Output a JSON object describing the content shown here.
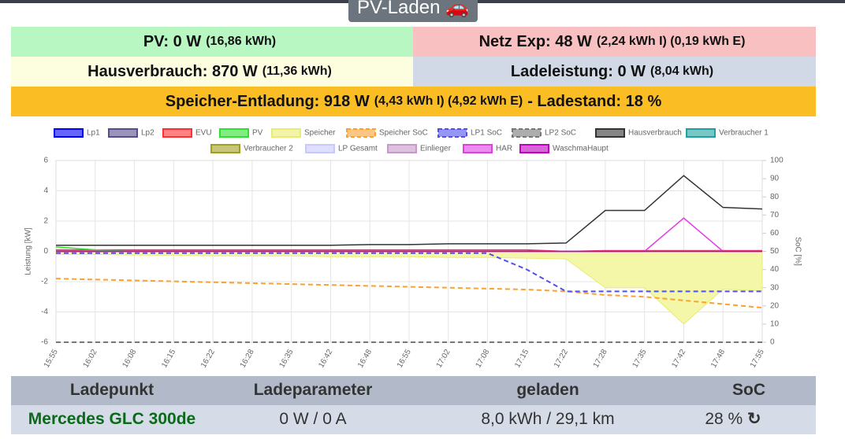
{
  "header": {
    "button": "PV-Laden"
  },
  "status": {
    "pv": {
      "label": "PV: 0 W",
      "detail": "(16,86 kWh)"
    },
    "netz": {
      "label": "Netz Exp: 48 W",
      "detail": "(2,24 kWh I) (0,19 kWh E)"
    },
    "haus": {
      "label": "Hausverbrauch: 870 W",
      "detail": "(11,36 kWh)"
    },
    "lade": {
      "label": "Ladeleistung: 0 W",
      "detail": "(8,04 kWh)"
    },
    "speicher": {
      "label": "Speicher-Entladung: 918 W",
      "detail": "(4,43 kWh I) (4,92 kWh E)",
      "suffix": "- Ladestand: 18 %"
    }
  },
  "chart_data": {
    "type": "line",
    "ylabel": "Leistung [kW]",
    "y2label": "SoC [%]",
    "categories": [
      "15:55",
      "16:02",
      "16:08",
      "16:15",
      "16:22",
      "16:28",
      "16:35",
      "16:42",
      "16:48",
      "16:55",
      "17:02",
      "17:08",
      "17:15",
      "17:22",
      "17:28",
      "17:35",
      "17:42",
      "17:48",
      "17:55"
    ],
    "ylim": [
      -6,
      6
    ],
    "yticks": [
      -6,
      -4,
      -2,
      0,
      2,
      4,
      6
    ],
    "y2lim": [
      0,
      100
    ],
    "y2ticks": [
      0,
      10,
      20,
      30,
      40,
      50,
      60,
      70,
      80,
      90,
      100
    ],
    "grid": true,
    "series": [
      {
        "name": "Lp1",
        "color": "#0000ff",
        "values": [
          0,
          0,
          0,
          0,
          0,
          0,
          0,
          0,
          0,
          0,
          0,
          0,
          0,
          0,
          0,
          0,
          0,
          0,
          0
        ]
      },
      {
        "name": "Lp2",
        "color": "#574d8c",
        "values": [
          0,
          0,
          0,
          0,
          0,
          0,
          0,
          0,
          0,
          0,
          0,
          0,
          0,
          0,
          0,
          0,
          0,
          0,
          0
        ]
      },
      {
        "name": "EVU",
        "color": "#ff3030",
        "values": [
          0.1,
          0.1,
          0.1,
          0.1,
          0.1,
          0.1,
          0.1,
          0.1,
          0.1,
          0.1,
          0.1,
          0.1,
          0.1,
          0,
          0.05,
          0.05,
          0.05,
          0.05,
          0.05
        ]
      },
      {
        "name": "PV",
        "color": "#30e030",
        "values": [
          0.3,
          0.1,
          0,
          0,
          0,
          0,
          0,
          0,
          0,
          0,
          0,
          0,
          0,
          0,
          0,
          0,
          0,
          0,
          0
        ]
      },
      {
        "name": "Speicher",
        "color": "#e8ec70",
        "values": [
          -0.2,
          -0.2,
          -0.25,
          -0.25,
          -0.3,
          -0.3,
          -0.3,
          -0.35,
          -0.35,
          -0.35,
          -0.4,
          -0.4,
          -0.45,
          -0.5,
          -2.4,
          -2.4,
          -4.8,
          -2.5,
          -2.6
        ]
      },
      {
        "name": "Speicher SoC",
        "color": "#fca030",
        "axis": "y2",
        "dashed": true,
        "values": [
          35,
          34.5,
          34,
          33.5,
          33,
          32.5,
          32,
          31.5,
          31,
          30.5,
          30,
          29.5,
          29,
          28,
          26,
          25,
          23,
          21,
          19
        ]
      },
      {
        "name": "LP1 SoC",
        "color": "#5050f0",
        "axis": "y2",
        "dashed": true,
        "values": [
          49,
          49,
          49,
          49,
          49,
          49,
          49,
          49,
          49,
          49,
          49,
          49,
          40,
          28,
          28,
          28,
          28,
          28,
          28
        ]
      },
      {
        "name": "LP2 SoC",
        "color": "#777777",
        "axis": "y2",
        "dashed": true,
        "values": [
          0,
          0,
          0,
          0,
          0,
          0,
          0,
          0,
          0,
          0,
          0,
          0,
          0,
          0,
          0,
          0,
          0,
          0,
          0
        ]
      },
      {
        "name": "Hausverbrauch",
        "color": "#333333",
        "values": [
          0.4,
          0.4,
          0.4,
          0.4,
          0.4,
          0.4,
          0.4,
          0.4,
          0.45,
          0.45,
          0.5,
          0.5,
          0.5,
          0.55,
          2.7,
          2.7,
          5.0,
          2.9,
          2.8
        ]
      },
      {
        "name": "Verbraucher 1",
        "color": "#20a0a0",
        "values": [
          0,
          0,
          0,
          0,
          0,
          0,
          0,
          0,
          0,
          0,
          0,
          0,
          0,
          0,
          0,
          0,
          0,
          0,
          0
        ]
      },
      {
        "name": "Verbraucher 2",
        "color": "#a0a020",
        "values": [
          0,
          0,
          0,
          0,
          0,
          0,
          0,
          0,
          0,
          0,
          0,
          0,
          0,
          0,
          0,
          0,
          0,
          0,
          0
        ]
      },
      {
        "name": "LP Gesamt",
        "color": "#c8c8ff",
        "values": [
          0,
          0,
          0,
          0,
          0,
          0,
          0,
          0,
          0,
          0,
          0,
          0,
          0,
          0,
          0,
          0,
          0,
          0,
          0
        ]
      },
      {
        "name": "Einlieger",
        "color": "#c898c8",
        "values": [
          0,
          0,
          0,
          0,
          0,
          0,
          0,
          0,
          0,
          0,
          0,
          0,
          0,
          0,
          0,
          0,
          0,
          0,
          0
        ]
      },
      {
        "name": "HAR",
        "color": "#e040e0",
        "values": [
          0,
          0,
          0,
          0,
          0,
          0,
          0,
          0,
          0,
          0,
          0,
          0,
          0,
          0,
          0,
          0,
          2.2,
          0,
          0
        ]
      },
      {
        "name": "WaschmaHaupt",
        "color": "#c000c0",
        "values": [
          0,
          0,
          0,
          0,
          0,
          0,
          0,
          0,
          0,
          0,
          0,
          0,
          0,
          0,
          0,
          0,
          0,
          0,
          0
        ]
      }
    ]
  },
  "table": {
    "headers": [
      "Ladepunkt",
      "Ladeparameter",
      "geladen",
      "SoC"
    ],
    "rows": [
      [
        "Mercedes GLC 300de",
        "0 W / 0 A",
        "8,0 kWh / 29,1 km",
        "28 %"
      ]
    ]
  }
}
